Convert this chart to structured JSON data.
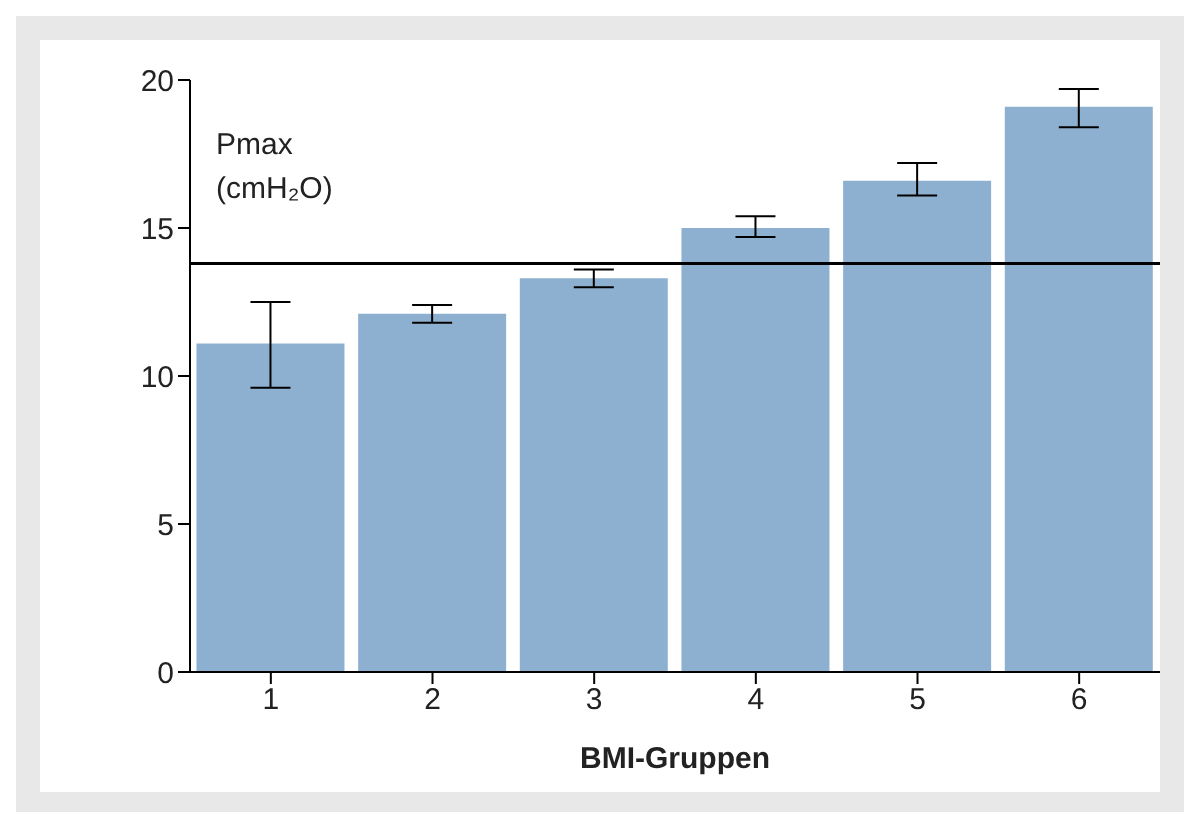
{
  "chart_data": {
    "type": "bar",
    "xlabel": "BMI-Gruppen",
    "ylabel": "Pmax (cmH₂O)",
    "categories": [
      "1",
      "2",
      "3",
      "4",
      "5",
      "6"
    ],
    "values": [
      11.1,
      12.1,
      13.3,
      15.0,
      16.6,
      19.1
    ],
    "errors": [
      [
        9.6,
        12.5
      ],
      [
        11.8,
        12.4
      ],
      [
        13.0,
        13.6
      ],
      [
        14.7,
        15.4
      ],
      [
        16.1,
        17.2
      ],
      [
        18.4,
        19.7
      ]
    ],
    "color": "#8eb0d0",
    "ylim": [
      0,
      20
    ],
    "yticks": [
      0,
      5,
      10,
      15,
      20
    ],
    "ref_lines": [
      {
        "axis": "y",
        "value": 13.8,
        "color": "#000000"
      }
    ]
  }
}
